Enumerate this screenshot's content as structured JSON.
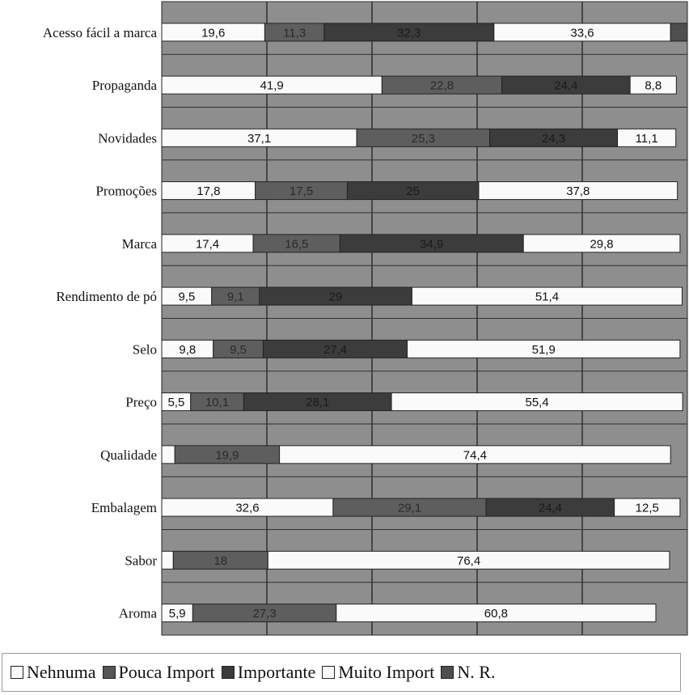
{
  "chart_data": {
    "type": "bar",
    "orientation": "horizontal",
    "stacked": true,
    "grid": true,
    "legend_placement": "bottom",
    "xlim": [
      0,
      100
    ],
    "categories": [
      "Acesso fácil a marca",
      "Propaganda",
      "Novidades",
      "Promoções",
      "Marca",
      "Rendimento de pó",
      "Selo",
      "Preço",
      "Qualidade",
      "Embalagem",
      "Sabor",
      "Aroma"
    ],
    "series": [
      {
        "name": "Nehnuma",
        "color": "#fafafa",
        "text_color": "#111111",
        "values": [
          19.6,
          41.9,
          37.1,
          17.8,
          17.4,
          9.5,
          9.8,
          5.5,
          2.5,
          32.6,
          2.2,
          5.9
        ]
      },
      {
        "name": "Pouca Import",
        "color": "#5e5e5e",
        "text_color": "#2a2a2a",
        "values": [
          11.3,
          22.8,
          25.3,
          17.5,
          16.5,
          9.1,
          9.5,
          10.1,
          19.9,
          29.1,
          18,
          27.3
        ]
      },
      {
        "name": "Importante",
        "color": "#3c3c3c",
        "text_color": "#1a1a1a",
        "values": [
          32.3,
          24.4,
          24.3,
          25,
          34.9,
          29,
          27.4,
          28.1,
          0,
          24.4,
          0,
          0
        ]
      },
      {
        "name": "Muito Import",
        "color": "#fafafa",
        "text_color": "#111111",
        "values": [
          33.6,
          8.8,
          11.1,
          37.8,
          29.8,
          51.4,
          51.9,
          55.4,
          74.4,
          12.5,
          76.4,
          60.8
        ]
      },
      {
        "name": "N. R.",
        "color": "#4e4e4e",
        "text_color": "#1a1a1a",
        "values": [
          3.2,
          0,
          0,
          0,
          0,
          0,
          0,
          0,
          0,
          0,
          0,
          0
        ]
      }
    ],
    "data_labels": [
      [
        "19,6",
        "11,3",
        "32,3",
        "33,6",
        ""
      ],
      [
        "41,9",
        "22,8",
        "24,4",
        "8,8",
        ""
      ],
      [
        "37,1",
        "25,3",
        "24,3",
        "11,1",
        ""
      ],
      [
        "17,8",
        "17,5",
        "25",
        "37,8",
        ""
      ],
      [
        "17,4",
        "16,5",
        "34,9",
        "29,8",
        ""
      ],
      [
        "9,5",
        "9,1",
        "29",
        "51,4",
        ""
      ],
      [
        "9,8",
        "9,5",
        "27,4",
        "51,9",
        ""
      ],
      [
        "5,5",
        "10,1",
        "28,1",
        "55,4",
        ""
      ],
      [
        "",
        "19,9",
        "",
        "74,4",
        ""
      ],
      [
        "32,6",
        "29,1",
        "24,4",
        "12,5",
        ""
      ],
      [
        "",
        "18",
        "",
        "76,4",
        ""
      ],
      [
        "5,9",
        "27,3",
        "",
        "60,8",
        ""
      ]
    ]
  },
  "legend": {
    "items": [
      {
        "label": "Nehnuma",
        "color": "#fafafa"
      },
      {
        "label": "Pouca Import",
        "color": "#555555"
      },
      {
        "label": "Importante",
        "color": "#3a3a3a"
      },
      {
        "label": "Muito Import",
        "color": "#fafafa"
      },
      {
        "label": "N. R.",
        "color": "#4e4e4e"
      }
    ]
  },
  "colors": {
    "plot_background": "#8e8e8e",
    "gridline": "#2f2f2f"
  }
}
